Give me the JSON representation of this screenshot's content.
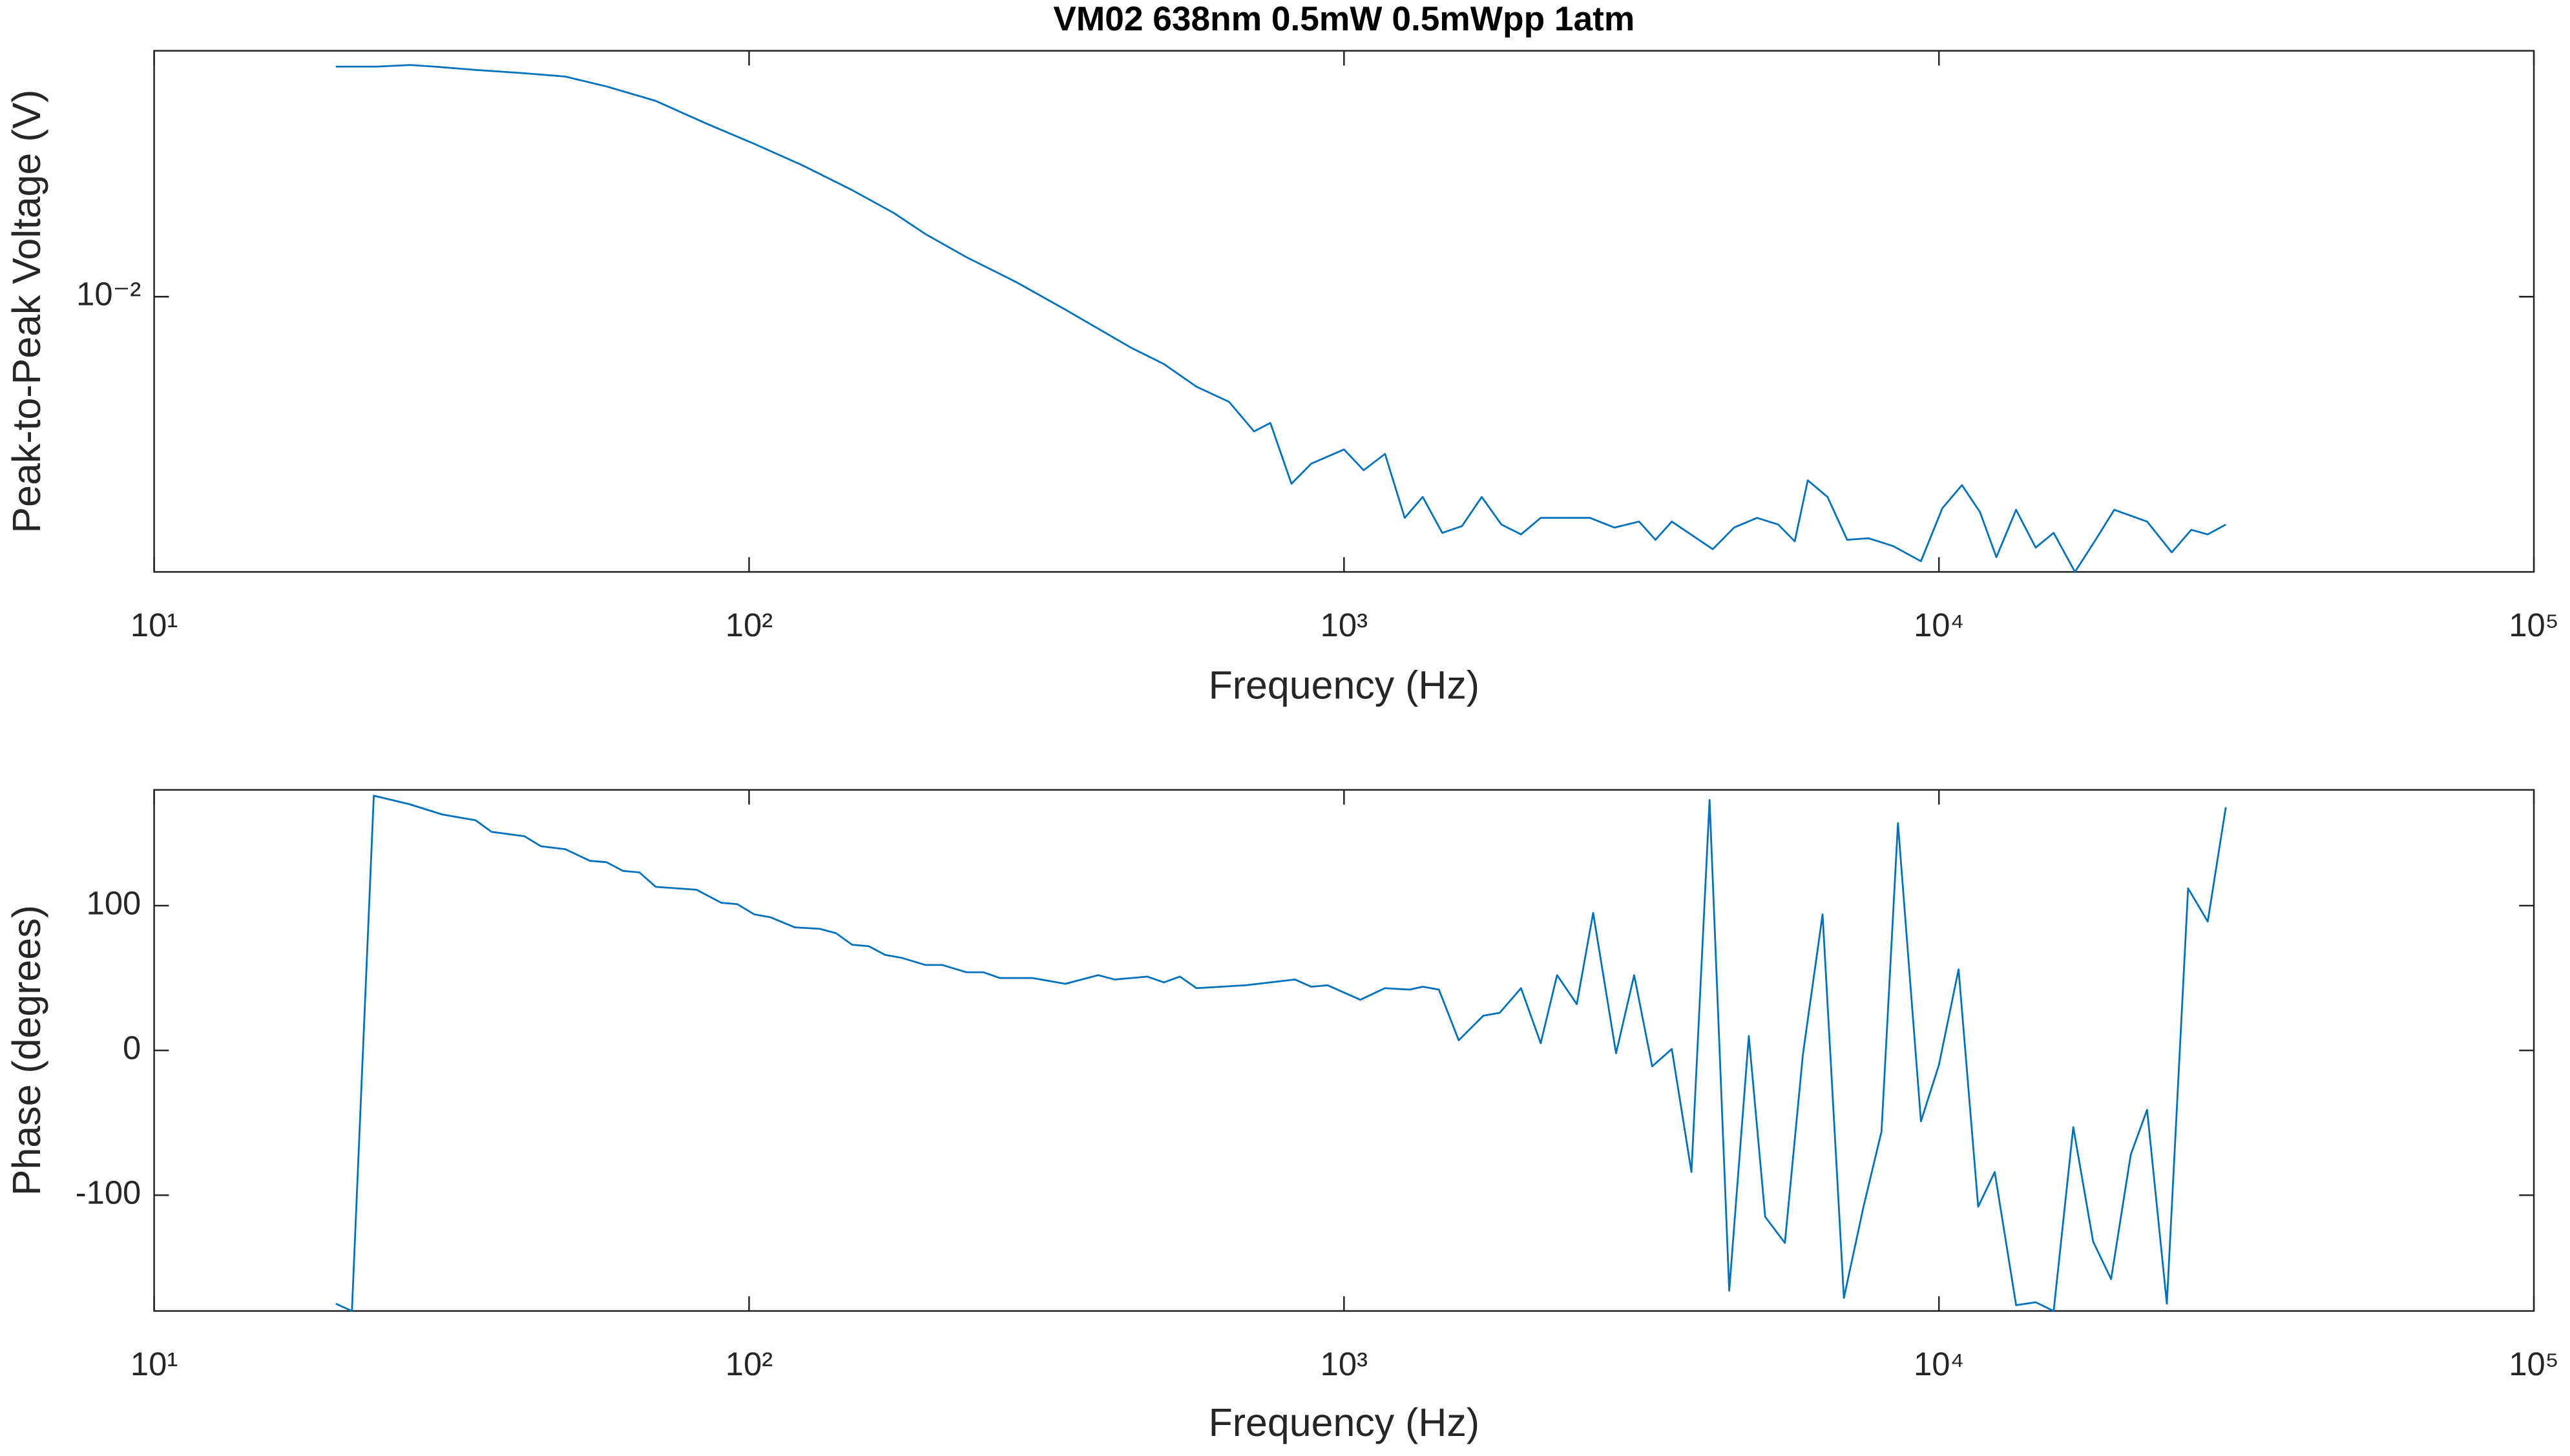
{
  "chart_data": [
    {
      "type": "line",
      "title": "VM02 638nm 0.5mW 0.5mWpp 1atm",
      "xlabel": "Frequency (Hz)",
      "ylabel": "Peak-to-Peak Voltage (V)",
      "xscale": "log",
      "yscale": "log",
      "color": "#0072bd",
      "xlim": [
        10,
        100000
      ],
      "xticks": [
        {
          "value": 10,
          "label": "10¹"
        },
        {
          "value": 100,
          "label": "10²"
        },
        {
          "value": 1000,
          "label": "10³"
        },
        {
          "value": 10000,
          "label": "10⁴"
        },
        {
          "value": 100000,
          "label": "10⁵"
        }
      ],
      "ylim": [
        0.00545,
        0.0172
      ],
      "yticks": [
        {
          "value": 0.01,
          "label": "10⁻²"
        }
      ],
      "x": [
        20.2,
        23.7,
        26.9,
        29.6,
        34.7,
        41.9,
        49.1,
        57.6,
        69.7,
        84.3,
        102,
        123,
        149,
        175,
        198,
        232,
        281,
        340,
        438,
        498,
        565,
        641,
        706,
        752,
        816,
        881,
        1000,
        1079,
        1172,
        1265,
        1356,
        1463,
        1579,
        1704,
        1839,
        1984,
        2141,
        2590,
        2848,
        3133,
        3338,
        3556,
        4167,
        4525,
        4946,
        5370,
        5723,
        6019,
        6497,
        7010,
        7613,
        8374,
        9327,
        10130,
        10930,
        11720,
        12490,
        13480,
        14540,
        15590,
        16930,
        18270,
        19710,
        22380,
        24620,
        26560,
        28300,
        30350
      ],
      "values": [
        0.01661,
        0.01661,
        0.01667,
        0.01661,
        0.01649,
        0.01637,
        0.01625,
        0.0159,
        0.0154,
        0.01467,
        0.01401,
        0.01336,
        0.01265,
        0.01203,
        0.01148,
        0.01091,
        0.01033,
        0.00972,
        0.00894,
        0.00862,
        0.0082,
        0.00793,
        0.00743,
        0.00757,
        0.00662,
        0.00692,
        0.00714,
        0.00682,
        0.00707,
        0.00614,
        0.00643,
        0.00594,
        0.00603,
        0.00643,
        0.00605,
        0.00592,
        0.00614,
        0.00614,
        0.00601,
        0.00609,
        0.00585,
        0.00609,
        0.00573,
        0.00601,
        0.00614,
        0.00605,
        0.00583,
        0.00667,
        0.00643,
        0.00585,
        0.00587,
        0.00577,
        0.00558,
        0.00627,
        0.0066,
        0.00622,
        0.00563,
        0.00625,
        0.00575,
        0.00594,
        0.00545,
        0.00583,
        0.00625,
        0.00609,
        0.00569,
        0.00598,
        0.00592,
        0.00605
      ]
    },
    {
      "type": "line",
      "xlabel": "Frequency (Hz)",
      "ylabel": "Phase (degrees)",
      "xscale": "log",
      "yscale": "linear",
      "color": "#0072bd",
      "xlim": [
        10,
        100000
      ],
      "xticks": [
        {
          "value": 10,
          "label": "10¹"
        },
        {
          "value": 100,
          "label": "10²"
        },
        {
          "value": 1000,
          "label": "10³"
        },
        {
          "value": 10000,
          "label": "10⁴"
        },
        {
          "value": 100000,
          "label": "10⁵"
        }
      ],
      "ylim": [
        -180,
        180
      ],
      "yticks": [
        -100,
        0,
        100
      ],
      "x": [
        20.2,
        21.5,
        23.4,
        26.9,
        30.5,
        34.7,
        36.9,
        41.9,
        44.7,
        49.1,
        54.0,
        57.6,
        61.4,
        65.4,
        69.7,
        81.6,
        89.8,
        95.6,
        102,
        108.6,
        119.4,
        131.4,
        140.0,
        149,
        158.9,
        169.3,
        180.4,
        198,
        211.4,
        232,
        247.7,
        264.0,
        299.7,
        340,
        386.2,
        411.6,
        467.0,
        498,
        530.0,
        565,
        683.4,
        826.8,
        881,
        938.6,
        1065,
        1172,
        1289,
        1356,
        1444,
        1559,
        1715,
        1827,
        1984,
        2141,
        2281,
        2462,
        2623,
        2866,
        3074,
        3296,
        3556,
        3837,
        4116,
        4441,
        4791,
        5105,
        5509,
        5906,
        6374,
        6922,
        7468,
        8007,
        8533,
        9327,
        10000,
        10790,
        11640,
        12410,
        13480,
        14540,
        15590,
        16820,
        18160,
        19470,
        21010,
        22380,
        24160,
        26230,
        28300,
        30350
      ],
      "values": [
        -175,
        -180,
        176,
        170,
        163,
        159,
        151,
        148,
        141,
        139,
        131,
        130,
        124,
        123,
        113,
        111,
        102,
        101,
        94,
        92,
        85,
        84,
        81,
        73,
        72,
        66,
        64,
        59,
        59,
        54,
        54,
        50,
        50,
        46,
        52,
        49,
        51,
        47,
        51,
        43,
        45,
        49,
        44,
        45,
        35,
        43,
        42,
        44,
        42,
        7,
        24,
        26,
        43,
        5,
        52,
        32,
        95,
        -2,
        52,
        -11,
        1,
        -84,
        173,
        -166,
        10,
        -115,
        -133,
        -3,
        94,
        -171,
        -108,
        -56,
        157,
        -49,
        -10,
        56,
        -108,
        -84,
        -176,
        -174,
        -180,
        -53,
        -132,
        -158,
        -72,
        -41,
        -175,
        112,
        89,
        168
      ]
    }
  ]
}
